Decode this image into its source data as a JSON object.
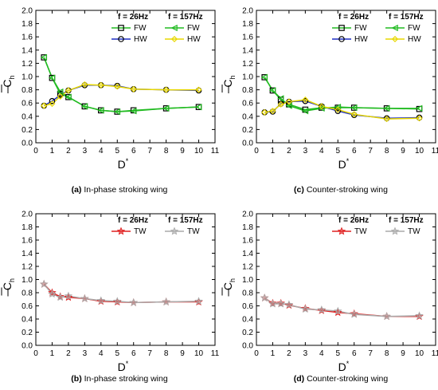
{
  "chart_data": [
    {
      "id": "a",
      "type": "line",
      "caption_letter": "(a)",
      "caption_text": "In-phase stroking wing",
      "xlabel": "D",
      "xlabel_sup": "*",
      "ylabel": "C",
      "ylabel_sub": "h",
      "xlim": [
        0,
        11
      ],
      "ylim": [
        0,
        2.0
      ],
      "xticks": [
        0,
        1,
        2,
        3,
        4,
        5,
        6,
        7,
        8,
        9,
        10,
        11
      ],
      "yticks": [
        0,
        0.2,
        0.4,
        0.6,
        0.8,
        1.0,
        1.2,
        1.4,
        1.6,
        1.8,
        2.0
      ],
      "legend": {
        "headers": [
          "f = 26Hz",
          "f = 157Hz"
        ],
        "rows": [
          {
            "left": "FW",
            "right": "FW"
          },
          {
            "left": "HW",
            "right": "HW"
          }
        ]
      },
      "series": [
        {
          "name": "FW",
          "group": "f = 26Hz",
          "color": "#000000",
          "marker": "square",
          "x": [
            0.5,
            1,
            1.5,
            2,
            3,
            4,
            5,
            6,
            8,
            10
          ],
          "y": [
            1.29,
            0.98,
            0.74,
            0.69,
            0.55,
            0.49,
            0.47,
            0.49,
            0.52,
            0.54
          ]
        },
        {
          "name": "HW",
          "group": "f = 26Hz",
          "color": "#000000",
          "marker": "circle",
          "x": [
            0.5,
            1,
            1.5,
            2,
            3,
            4,
            5,
            6,
            8,
            10
          ],
          "y": [
            0.56,
            0.63,
            0.72,
            0.79,
            0.87,
            0.87,
            0.86,
            0.81,
            0.8,
            0.79
          ]
        },
        {
          "name": "FW",
          "group": "f = 157Hz",
          "color": "#22bb22",
          "marker": "triangle-left",
          "x": [
            0.5,
            1,
            1.5,
            2,
            3,
            4,
            5,
            6,
            8,
            10
          ],
          "y": [
            1.29,
            0.98,
            0.77,
            0.69,
            0.55,
            0.49,
            0.47,
            0.48,
            0.52,
            0.54
          ]
        },
        {
          "name": "HW",
          "group": "f = 157Hz",
          "color": "#e8d800",
          "marker": "diamond",
          "x": [
            0.5,
            1,
            1.5,
            2,
            3,
            4,
            5,
            6,
            8,
            10
          ],
          "y": [
            0.56,
            0.59,
            0.7,
            0.79,
            0.88,
            0.87,
            0.85,
            0.81,
            0.8,
            0.8
          ]
        }
      ],
      "series_lines": [
        "#22bb22",
        "#22bb22",
        "#22bb22",
        "#e8d800"
      ],
      "line_colors": [
        "#22bb22",
        "#1f2fc4",
        "#22bb22",
        "#e8d800"
      ]
    },
    {
      "id": "c",
      "type": "line",
      "caption_letter": "(c)",
      "caption_text": "Counter-stroking wing",
      "xlabel": "D",
      "xlabel_sup": "*",
      "ylabel": "C",
      "ylabel_sub": "h",
      "xlim": [
        0,
        11
      ],
      "ylim": [
        0,
        2.0
      ],
      "xticks": [
        0,
        1,
        2,
        3,
        4,
        5,
        6,
        7,
        8,
        9,
        10,
        11
      ],
      "yticks": [
        0,
        0.2,
        0.4,
        0.6,
        0.8,
        1.0,
        1.2,
        1.4,
        1.6,
        1.8,
        2.0
      ],
      "legend": {
        "headers": [
          "f = 26Hz",
          "f = 157Hz"
        ],
        "rows": [
          {
            "left": "FW",
            "right": "FW"
          },
          {
            "left": "HW",
            "right": "HW"
          }
        ]
      },
      "series": [
        {
          "name": "FW",
          "group": "f = 26Hz",
          "color": "#000000",
          "marker": "square",
          "x": [
            0.5,
            1,
            1.5,
            2,
            3,
            4,
            5,
            6,
            8,
            10
          ],
          "y": [
            0.99,
            0.79,
            0.65,
            0.58,
            0.5,
            0.53,
            0.53,
            0.53,
            0.52,
            0.51
          ]
        },
        {
          "name": "HW",
          "group": "f = 26Hz",
          "color": "#000000",
          "marker": "circle",
          "x": [
            0.5,
            1,
            1.5,
            2,
            3,
            4,
            5,
            6,
            8,
            10
          ],
          "y": [
            0.46,
            0.47,
            0.59,
            0.62,
            0.63,
            0.55,
            0.48,
            0.42,
            0.37,
            0.38
          ]
        },
        {
          "name": "FW",
          "group": "f = 157Hz",
          "color": "#22bb22",
          "marker": "triangle-left",
          "x": [
            0.5,
            1,
            1.5,
            2,
            3,
            4,
            5,
            6,
            8,
            10
          ],
          "y": [
            0.99,
            0.79,
            0.67,
            0.56,
            0.48,
            0.52,
            0.54,
            0.53,
            0.52,
            0.52
          ]
        },
        {
          "name": "HW",
          "group": "f = 157Hz",
          "color": "#e8d800",
          "marker": "diamond",
          "x": [
            0.5,
            1,
            1.5,
            2,
            3,
            4,
            5,
            6,
            8,
            10
          ],
          "y": [
            0.46,
            0.48,
            0.58,
            0.62,
            0.65,
            0.55,
            0.5,
            0.43,
            0.36,
            0.37
          ]
        }
      ],
      "line_colors": [
        "#22bb22",
        "#1f2fc4",
        "#22bb22",
        "#e8d800"
      ]
    },
    {
      "id": "b",
      "type": "line",
      "caption_letter": "(b)",
      "caption_text": "In-phase stroking wing",
      "xlabel": "D",
      "xlabel_sup": "*",
      "ylabel": "C",
      "ylabel_sub": "h",
      "xlim": [
        0,
        11
      ],
      "ylim": [
        0,
        2.0
      ],
      "xticks": [
        0,
        1,
        2,
        3,
        4,
        5,
        6,
        7,
        8,
        9,
        10,
        11
      ],
      "yticks": [
        0,
        0.2,
        0.4,
        0.6,
        0.8,
        1.0,
        1.2,
        1.4,
        1.6,
        1.8,
        2.0
      ],
      "legend": {
        "headers": [
          "f = 26Hz",
          "f = 157Hz"
        ],
        "rows": [
          {
            "left": "TW",
            "right": "TW"
          }
        ]
      },
      "series": [
        {
          "name": "TW",
          "group": "f = 26Hz",
          "color": "#e02020",
          "marker": "star",
          "x": [
            0.5,
            1,
            1.5,
            2,
            3,
            4,
            5,
            6,
            8,
            10
          ],
          "y": [
            0.93,
            0.8,
            0.74,
            0.73,
            0.71,
            0.67,
            0.66,
            0.65,
            0.66,
            0.66
          ]
        },
        {
          "name": "TW",
          "group": "f = 157Hz",
          "color": "#aaaaaa",
          "marker": "star",
          "x": [
            0.5,
            1,
            1.5,
            2,
            3,
            4,
            5,
            6,
            8,
            10
          ],
          "y": [
            0.93,
            0.78,
            0.73,
            0.75,
            0.71,
            0.68,
            0.67,
            0.65,
            0.66,
            0.67
          ]
        }
      ],
      "line_colors": [
        "#e02020",
        "#aaaaaa"
      ]
    },
    {
      "id": "d",
      "type": "line",
      "caption_letter": "(d)",
      "caption_text": "Counter-stroking wing",
      "xlabel": "D",
      "xlabel_sup": "*",
      "ylabel": "C",
      "ylabel_sub": "h",
      "xlim": [
        0,
        11
      ],
      "ylim": [
        0,
        2.0
      ],
      "xticks": [
        0,
        1,
        2,
        3,
        4,
        5,
        6,
        7,
        8,
        9,
        10,
        11
      ],
      "yticks": [
        0,
        0.2,
        0.4,
        0.6,
        0.8,
        1.0,
        1.2,
        1.4,
        1.6,
        1.8,
        2.0
      ],
      "legend": {
        "headers": [
          "f = 26Hz",
          "f = 157Hz"
        ],
        "rows": [
          {
            "left": "TW",
            "right": "TW"
          }
        ]
      },
      "series": [
        {
          "name": "TW",
          "group": "f = 26Hz",
          "color": "#e02020",
          "marker": "star",
          "x": [
            0.5,
            1,
            1.5,
            2,
            3,
            4,
            5,
            6,
            8,
            10
          ],
          "y": [
            0.72,
            0.64,
            0.64,
            0.61,
            0.56,
            0.53,
            0.5,
            0.48,
            0.44,
            0.44
          ]
        },
        {
          "name": "TW",
          "group": "f = 157Hz",
          "color": "#aaaaaa",
          "marker": "star",
          "x": [
            0.5,
            1,
            1.5,
            2,
            3,
            4,
            5,
            6,
            8,
            10
          ],
          "y": [
            0.72,
            0.63,
            0.63,
            0.62,
            0.55,
            0.54,
            0.52,
            0.47,
            0.44,
            0.45
          ]
        }
      ],
      "line_colors": [
        "#e02020",
        "#aaaaaa"
      ]
    }
  ]
}
